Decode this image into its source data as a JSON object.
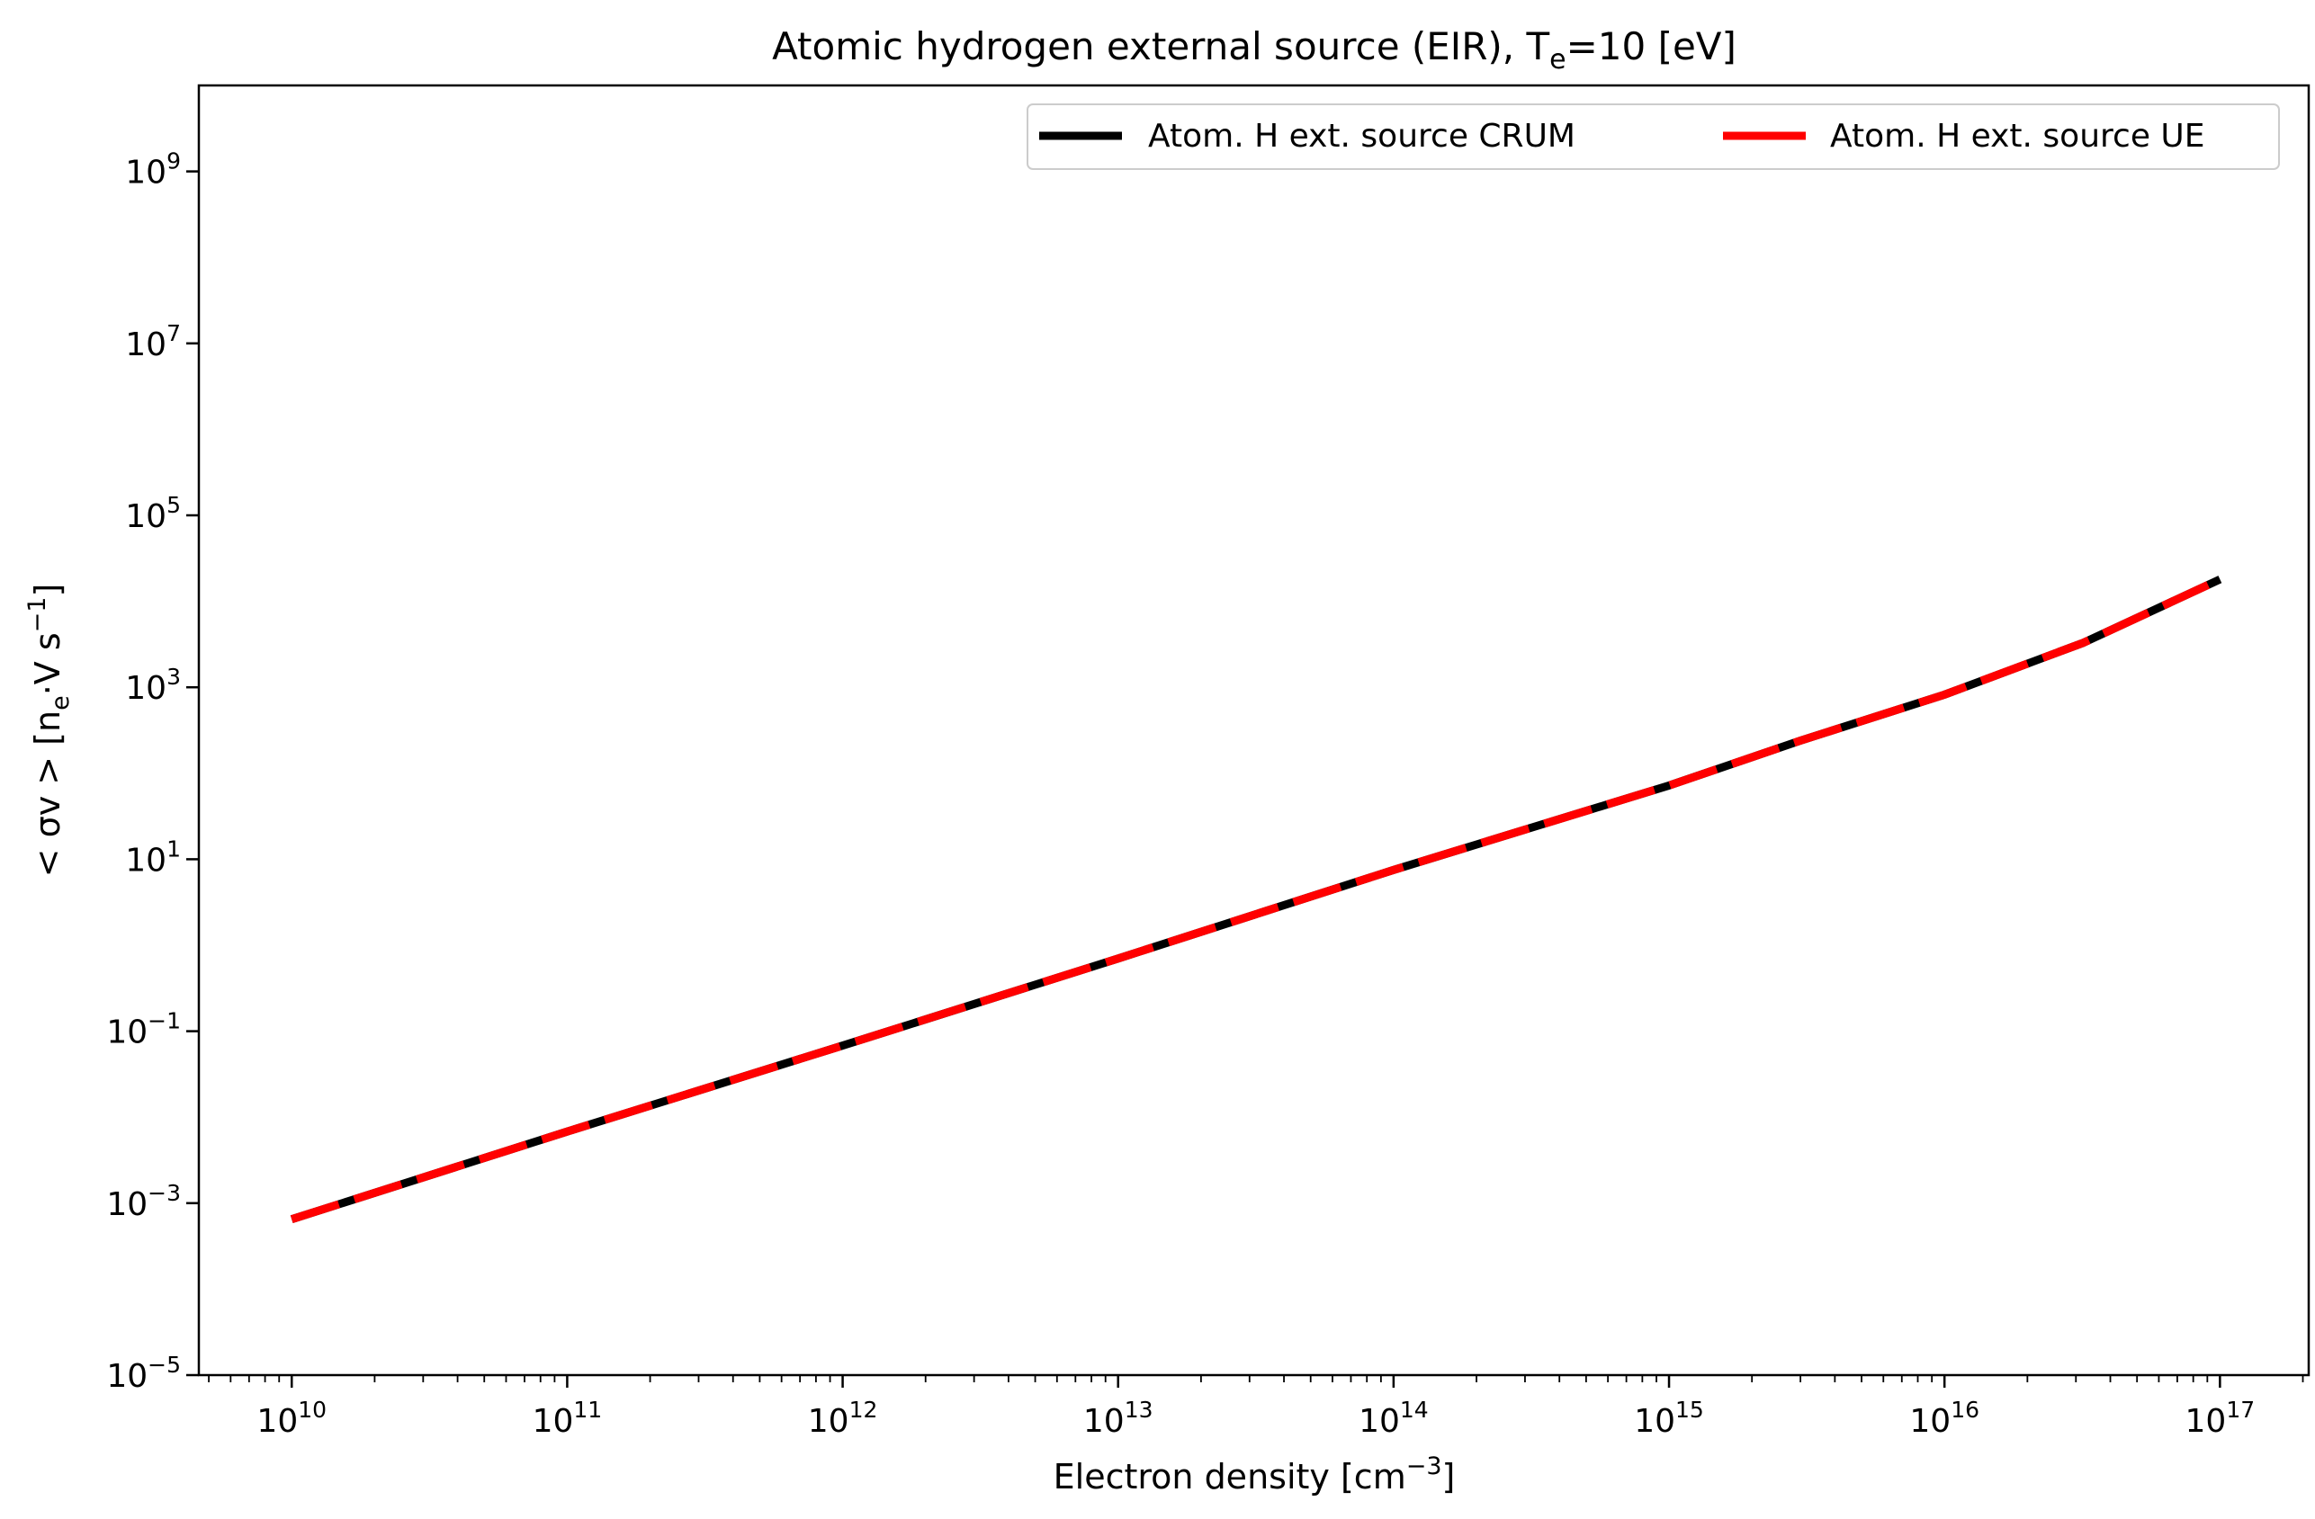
{
  "chart_data": {
    "type": "line",
    "title": {
      "main": "Atomic hydrogen external source (EIR), T",
      "sub": "e",
      "rest": "=10 [eV]"
    },
    "xlabel": {
      "main": "Electron density [cm",
      "sup": "−3",
      "rest": "]"
    },
    "ylabel": {
      "a": "< σv >  [n",
      "a_sub": "e",
      "b": "·V   s",
      "b_sup": "−1",
      "c": "]"
    },
    "x_scale": "log",
    "y_scale": "log",
    "xlim": [
      4600000000.0,
      2.1e+17
    ],
    "ylim": [
      1e-05,
      10000000000.0
    ],
    "x_ticks": [
      {
        "value": 10000000000.0,
        "base": "10",
        "exp": "10"
      },
      {
        "value": 100000000000.0,
        "base": "10",
        "exp": "11"
      },
      {
        "value": 1000000000000.0,
        "base": "10",
        "exp": "12"
      },
      {
        "value": 10000000000000.0,
        "base": "10",
        "exp": "13"
      },
      {
        "value": 100000000000000.0,
        "base": "10",
        "exp": "14"
      },
      {
        "value": 1000000000000000.0,
        "base": "10",
        "exp": "15"
      },
      {
        "value": 1e+16,
        "base": "10",
        "exp": "16"
      },
      {
        "value": 1e+17,
        "base": "10",
        "exp": "17"
      }
    ],
    "y_ticks": [
      {
        "value": 1e-05,
        "base": "10",
        "exp": "−5"
      },
      {
        "value": 0.001,
        "base": "10",
        "exp": "−3"
      },
      {
        "value": 0.1,
        "base": "10",
        "exp": "−1"
      },
      {
        "value": 10.0,
        "base": "10",
        "exp": "1"
      },
      {
        "value": 1000.0,
        "base": "10",
        "exp": "3"
      },
      {
        "value": 100000.0,
        "base": "10",
        "exp": "5"
      },
      {
        "value": 10000000.0,
        "base": "10",
        "exp": "7"
      },
      {
        "value": 1000000000.0,
        "base": "10",
        "exp": "9"
      }
    ],
    "grid": false,
    "legend": {
      "placement": "top-right",
      "columns": 2
    },
    "series": [
      {
        "name": "Atom. H ext. source CRUM",
        "color": "#000000",
        "style": "solid",
        "x": [
          10000000000.0,
          100000000000.0,
          1000000000000.0,
          10000000000000.0,
          100000000000000.0,
          1000000000000000.0,
          3000000000000000.0,
          1e+16,
          3.2e+16,
          1e+17
        ],
        "y": [
          0.00065,
          0.0068,
          0.068,
          0.7,
          7.5,
          72,
          240,
          820,
          3300,
          18000
        ]
      },
      {
        "name": "Atom. H ext. source UE",
        "color": "#ff0000",
        "style": "dashed",
        "x": [
          10000000000.0,
          100000000000.0,
          1000000000000.0,
          10000000000000.0,
          100000000000000.0,
          1000000000000000.0,
          3000000000000000.0,
          1e+16,
          3.2e+16,
          1e+17
        ],
        "y": [
          0.00065,
          0.0068,
          0.068,
          0.7,
          7.5,
          72,
          240,
          820,
          3300,
          18000
        ]
      }
    ]
  }
}
